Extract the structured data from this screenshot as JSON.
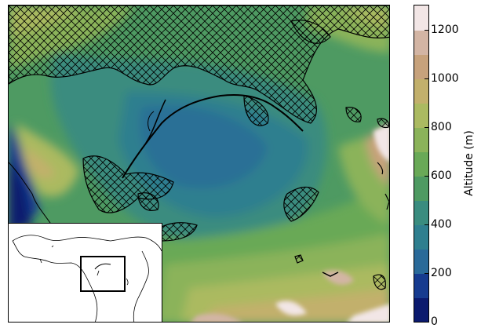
{
  "map": {
    "colormap_levels": [
      {
        "min": 0,
        "max": 100,
        "color": "#0b1a6e"
      },
      {
        "min": 100,
        "max": 200,
        "color": "#163b8f"
      },
      {
        "min": 200,
        "max": 300,
        "color": "#2a6a99"
      },
      {
        "min": 300,
        "max": 400,
        "color": "#2f7f8f"
      },
      {
        "min": 400,
        "max": 500,
        "color": "#3a8c7f"
      },
      {
        "min": 500,
        "max": 600,
        "color": "#4e9a62"
      },
      {
        "min": 600,
        "max": 700,
        "color": "#69a957"
      },
      {
        "min": 700,
        "max": 800,
        "color": "#8bb35a"
      },
      {
        "min": 800,
        "max": 900,
        "color": "#abba61"
      },
      {
        "min": 900,
        "max": 1000,
        "color": "#c2b06c"
      },
      {
        "min": 1000,
        "max": 1100,
        "color": "#c7a27c"
      },
      {
        "min": 1100,
        "max": 1200,
        "color": "#d3b5a4"
      },
      {
        "min": 1200,
        "max": 1300,
        "color": "#f2e6e6"
      }
    ],
    "hatched_regions": "crosshatch",
    "inset_box_label": ""
  },
  "colorbar": {
    "label": "Altitude (m)",
    "ticks": [
      "0",
      "200",
      "400",
      "600",
      "800",
      "1000",
      "1200"
    ],
    "tick_values": [
      0,
      200,
      400,
      600,
      800,
      1000,
      1200
    ],
    "range": [
      0,
      1300
    ]
  }
}
